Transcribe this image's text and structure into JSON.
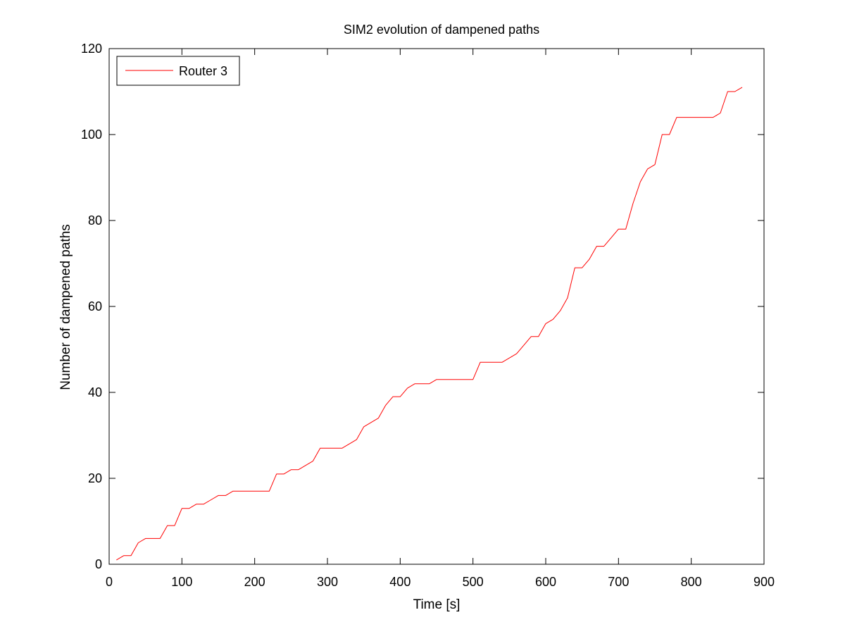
{
  "colors": {
    "background": "#ffffff",
    "axes": "#000000",
    "series_line": "#ff0000"
  },
  "chart_data": {
    "type": "line",
    "title": "SIM2 evolution of dampened paths",
    "xlabel": "Time [s]",
    "ylabel": "Number of dampened paths",
    "xlim": [
      0,
      900
    ],
    "ylim": [
      0,
      120
    ],
    "xticks": [
      0,
      100,
      200,
      300,
      400,
      500,
      600,
      700,
      800,
      900
    ],
    "yticks": [
      0,
      20,
      40,
      60,
      80,
      100,
      120
    ],
    "grid": false,
    "legend_position": "top-left",
    "series": [
      {
        "name": "Router 3",
        "color": "#ff0000",
        "x": [
          10,
          20,
          30,
          40,
          50,
          60,
          70,
          80,
          90,
          100,
          110,
          120,
          130,
          140,
          150,
          160,
          170,
          180,
          190,
          200,
          210,
          220,
          230,
          240,
          250,
          260,
          270,
          280,
          290,
          300,
          310,
          320,
          330,
          340,
          350,
          360,
          370,
          380,
          390,
          400,
          410,
          420,
          430,
          440,
          450,
          460,
          470,
          480,
          490,
          500,
          510,
          520,
          530,
          540,
          550,
          560,
          570,
          580,
          590,
          600,
          610,
          620,
          630,
          640,
          650,
          660,
          670,
          680,
          690,
          700,
          710,
          720,
          730,
          740,
          750,
          760,
          770,
          780,
          790,
          800,
          810,
          820,
          830,
          840,
          850,
          860,
          870
        ],
        "y": [
          1,
          2,
          2,
          5,
          6,
          6,
          6,
          9,
          9,
          13,
          13,
          14,
          14,
          15,
          16,
          16,
          17,
          17,
          17,
          17,
          17,
          17,
          21,
          21,
          22,
          22,
          23,
          24,
          27,
          27,
          27,
          27,
          28,
          29,
          32,
          33,
          34,
          37,
          39,
          39,
          41,
          42,
          42,
          42,
          43,
          43,
          43,
          43,
          43,
          43,
          47,
          47,
          47,
          47,
          48,
          49,
          51,
          53,
          53,
          56,
          57,
          59,
          62,
          69,
          69,
          71,
          74,
          74,
          76,
          78,
          78,
          84,
          89,
          92,
          93,
          100,
          100,
          104,
          104,
          104,
          104,
          104,
          104,
          105,
          110,
          110,
          111
        ]
      }
    ]
  }
}
